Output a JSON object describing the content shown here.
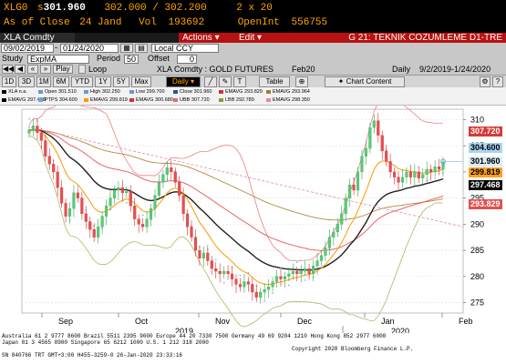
{
  "header": {
    "ticker": "XLG0",
    "last_label": "s",
    "last": "301.960",
    "bid_ask": "302.000 / 302.200",
    "size": "2 x 20",
    "asof_label": "As of Close",
    "asof_date": "24 Jand",
    "vol_label": "Vol",
    "vol": "193692",
    "oi_label": "OpenInt",
    "oi": "556755"
  },
  "toolbar": {
    "security": "XLA Comdty",
    "actions": "Actions ▾",
    "edit": "Edit ▾",
    "function_title": "G 21: TEKNIK COZUMLEME D1-TRE"
  },
  "range": {
    "start": "09/02/2019",
    "end": "01/24/2020",
    "currency": "Local CCY"
  },
  "study": {
    "label": "Study",
    "value": "ExpMA",
    "period_label": "Period",
    "period": "50",
    "offset_label": "Offset",
    "offset": "0"
  },
  "play": {
    "play_label": "Play",
    "loop_label": "Loop",
    "chart_title": "XLA Comdty : GOLD FUTURES",
    "contract": "Feb20",
    "freq": "Daily",
    "span": "9/2/2019-1/24/2020"
  },
  "periods": [
    "1D",
    "3D",
    "1M",
    "6M",
    "YTD",
    "1Y",
    "5Y",
    "Max"
  ],
  "period_selected": "Daily ▾",
  "chart_buttons": {
    "table": "Table",
    "content": "Chart Content",
    "gear": "✦"
  },
  "legend": [
    {
      "label": "XLA n.a.",
      "color": "#000000"
    },
    {
      "label": "Open 301.510",
      "color": "#6699cc"
    },
    {
      "label": "High 302.250",
      "color": "#6699cc"
    },
    {
      "label": "Low 299.700",
      "color": "#6699cc"
    },
    {
      "label": "Close 301.960",
      "color": "#2255aa"
    },
    {
      "label": "EMAVG 293.829",
      "color": "#cc3333"
    },
    {
      "label": "EMAVG 293.964",
      "color": "#a08030"
    },
    {
      "label": "EMAVG 297.468",
      "color": "#000000"
    },
    {
      "label": "PTPS 304.600",
      "color": "#66aadd"
    },
    {
      "label": "EMAVG 299.819",
      "color": "#ff9900"
    },
    {
      "label": "EMAVG 300.680",
      "color": "#cc3333"
    },
    {
      "label": "UBB 307.720",
      "color": "#e07070"
    },
    {
      "label": "LBB 292.789",
      "color": "#889944"
    },
    {
      "label": "EMAVG 298.350",
      "color": "#ee8899"
    }
  ],
  "price_tags": [
    {
      "value": "307.720",
      "price": 307.72,
      "bg": "#d63a3a",
      "fg": "#ffffff"
    },
    {
      "value": "304.600",
      "price": 304.6,
      "bg": "#a8d4f0",
      "fg": "#000000"
    },
    {
      "value": "301.960",
      "price": 301.96,
      "bg": "#d9ecf8",
      "fg": "#000000"
    },
    {
      "value": "299.819",
      "price": 299.82,
      "bg": "#ffa020",
      "fg": "#000000"
    },
    {
      "value": "297.468",
      "price": 297.47,
      "bg": "#000000",
      "fg": "#ffffff"
    },
    {
      "value": "293.829",
      "price": 293.83,
      "bg": "#e05050",
      "fg": "#ffffff"
    }
  ],
  "chart_data": {
    "type": "candlestick",
    "y_ticks": [
      "310",
      "305",
      "300",
      "295",
      "290",
      "285",
      "280",
      "275"
    ],
    "ylim": [
      273,
      312
    ],
    "x_labels": [
      "Sep",
      "Oct",
      "Nov",
      "Dec",
      "Jan",
      "Feb"
    ],
    "year_labels": [
      "2019",
      "2020"
    ],
    "close_series": [
      308,
      308.8,
      307.5,
      306,
      303,
      301.5,
      300,
      297,
      294,
      291.5,
      293,
      296,
      295,
      292,
      290.5,
      289,
      287.5,
      289.5,
      291.5,
      293.5,
      295,
      296.5,
      297,
      296,
      296.3,
      293.5,
      291,
      290,
      289.5,
      291,
      293,
      295.5,
      298,
      299.5,
      300.8,
      300,
      298,
      295.5,
      292,
      289.5,
      287.5,
      285,
      283.5,
      284.5,
      283,
      281.5,
      281,
      280.5,
      281,
      280.5,
      279.5,
      278.5,
      278,
      279,
      278.5,
      277,
      276,
      277,
      277.5,
      278,
      279,
      280,
      279.5,
      280,
      280.5,
      281,
      280.5,
      281,
      281.5,
      280.5,
      282,
      283,
      284,
      285.5,
      287.5,
      288.5,
      290,
      292,
      295,
      297.5,
      296.5,
      300,
      303,
      304.5,
      308.5,
      309.8,
      307,
      304,
      302,
      300,
      299,
      298,
      299,
      300,
      299,
      300,
      298.8,
      299.5,
      300.5,
      300,
      301,
      300.5,
      301.96
    ]
  },
  "footer": {
    "line1": "Australia 61 2 9777 8600  Brazil 5511 2395 9000  Europe 44 20 7330 7500  Germany 49 69 9204 1210  Hong Kong 852 2977 6000",
    "line2": "Japan 81 3 4565 8900        Singapore 65 6212 1000        U.S. 1 212 318 2000",
    "line3": "Copyright 2020 Bloomberg Finance L.P.",
    "line4": "SN 840766 TRT  GMT+3:00 H455-3259-0  26-Jan-2020 23:33:16"
  }
}
